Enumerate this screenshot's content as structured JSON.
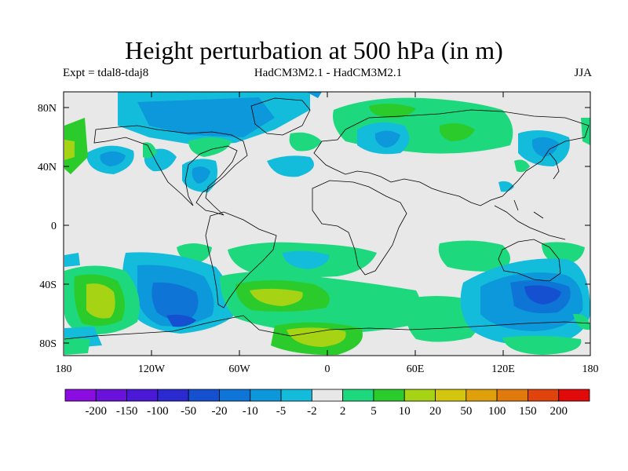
{
  "title": "Height perturbation at 500 hPa (in m)",
  "subtitle_left": "Expt = tdal8-tdaj8",
  "subtitle_center": "HadCM3M2.1 - HadCM3M2.1",
  "subtitle_right": "JJA",
  "y_ticks": [
    "80N",
    "40N",
    "0",
    "40S",
    "80S"
  ],
  "x_ticks": [
    "180",
    "120W",
    "60W",
    "0",
    "60E",
    "120E",
    "180"
  ],
  "colorbar": {
    "labels": [
      "-200",
      "-150",
      "-100",
      "-50",
      "-20",
      "-10",
      "-5",
      "-2",
      "2",
      "5",
      "10",
      "20",
      "50",
      "100",
      "150",
      "200"
    ],
    "colors": [
      "#8a0ce0",
      "#6a12dc",
      "#4a18d6",
      "#2a2ad0",
      "#1450d0",
      "#0e74d6",
      "#0c98da",
      "#14bcdc",
      "#e8e8e8",
      "#1ed87e",
      "#2acb2a",
      "#a6d414",
      "#d4c60e",
      "#e0a00c",
      "#e07a0c",
      "#e0440c",
      "#e00a0a"
    ]
  },
  "colors": {
    "background": "#e8e8e8",
    "coast": "#000000"
  }
}
